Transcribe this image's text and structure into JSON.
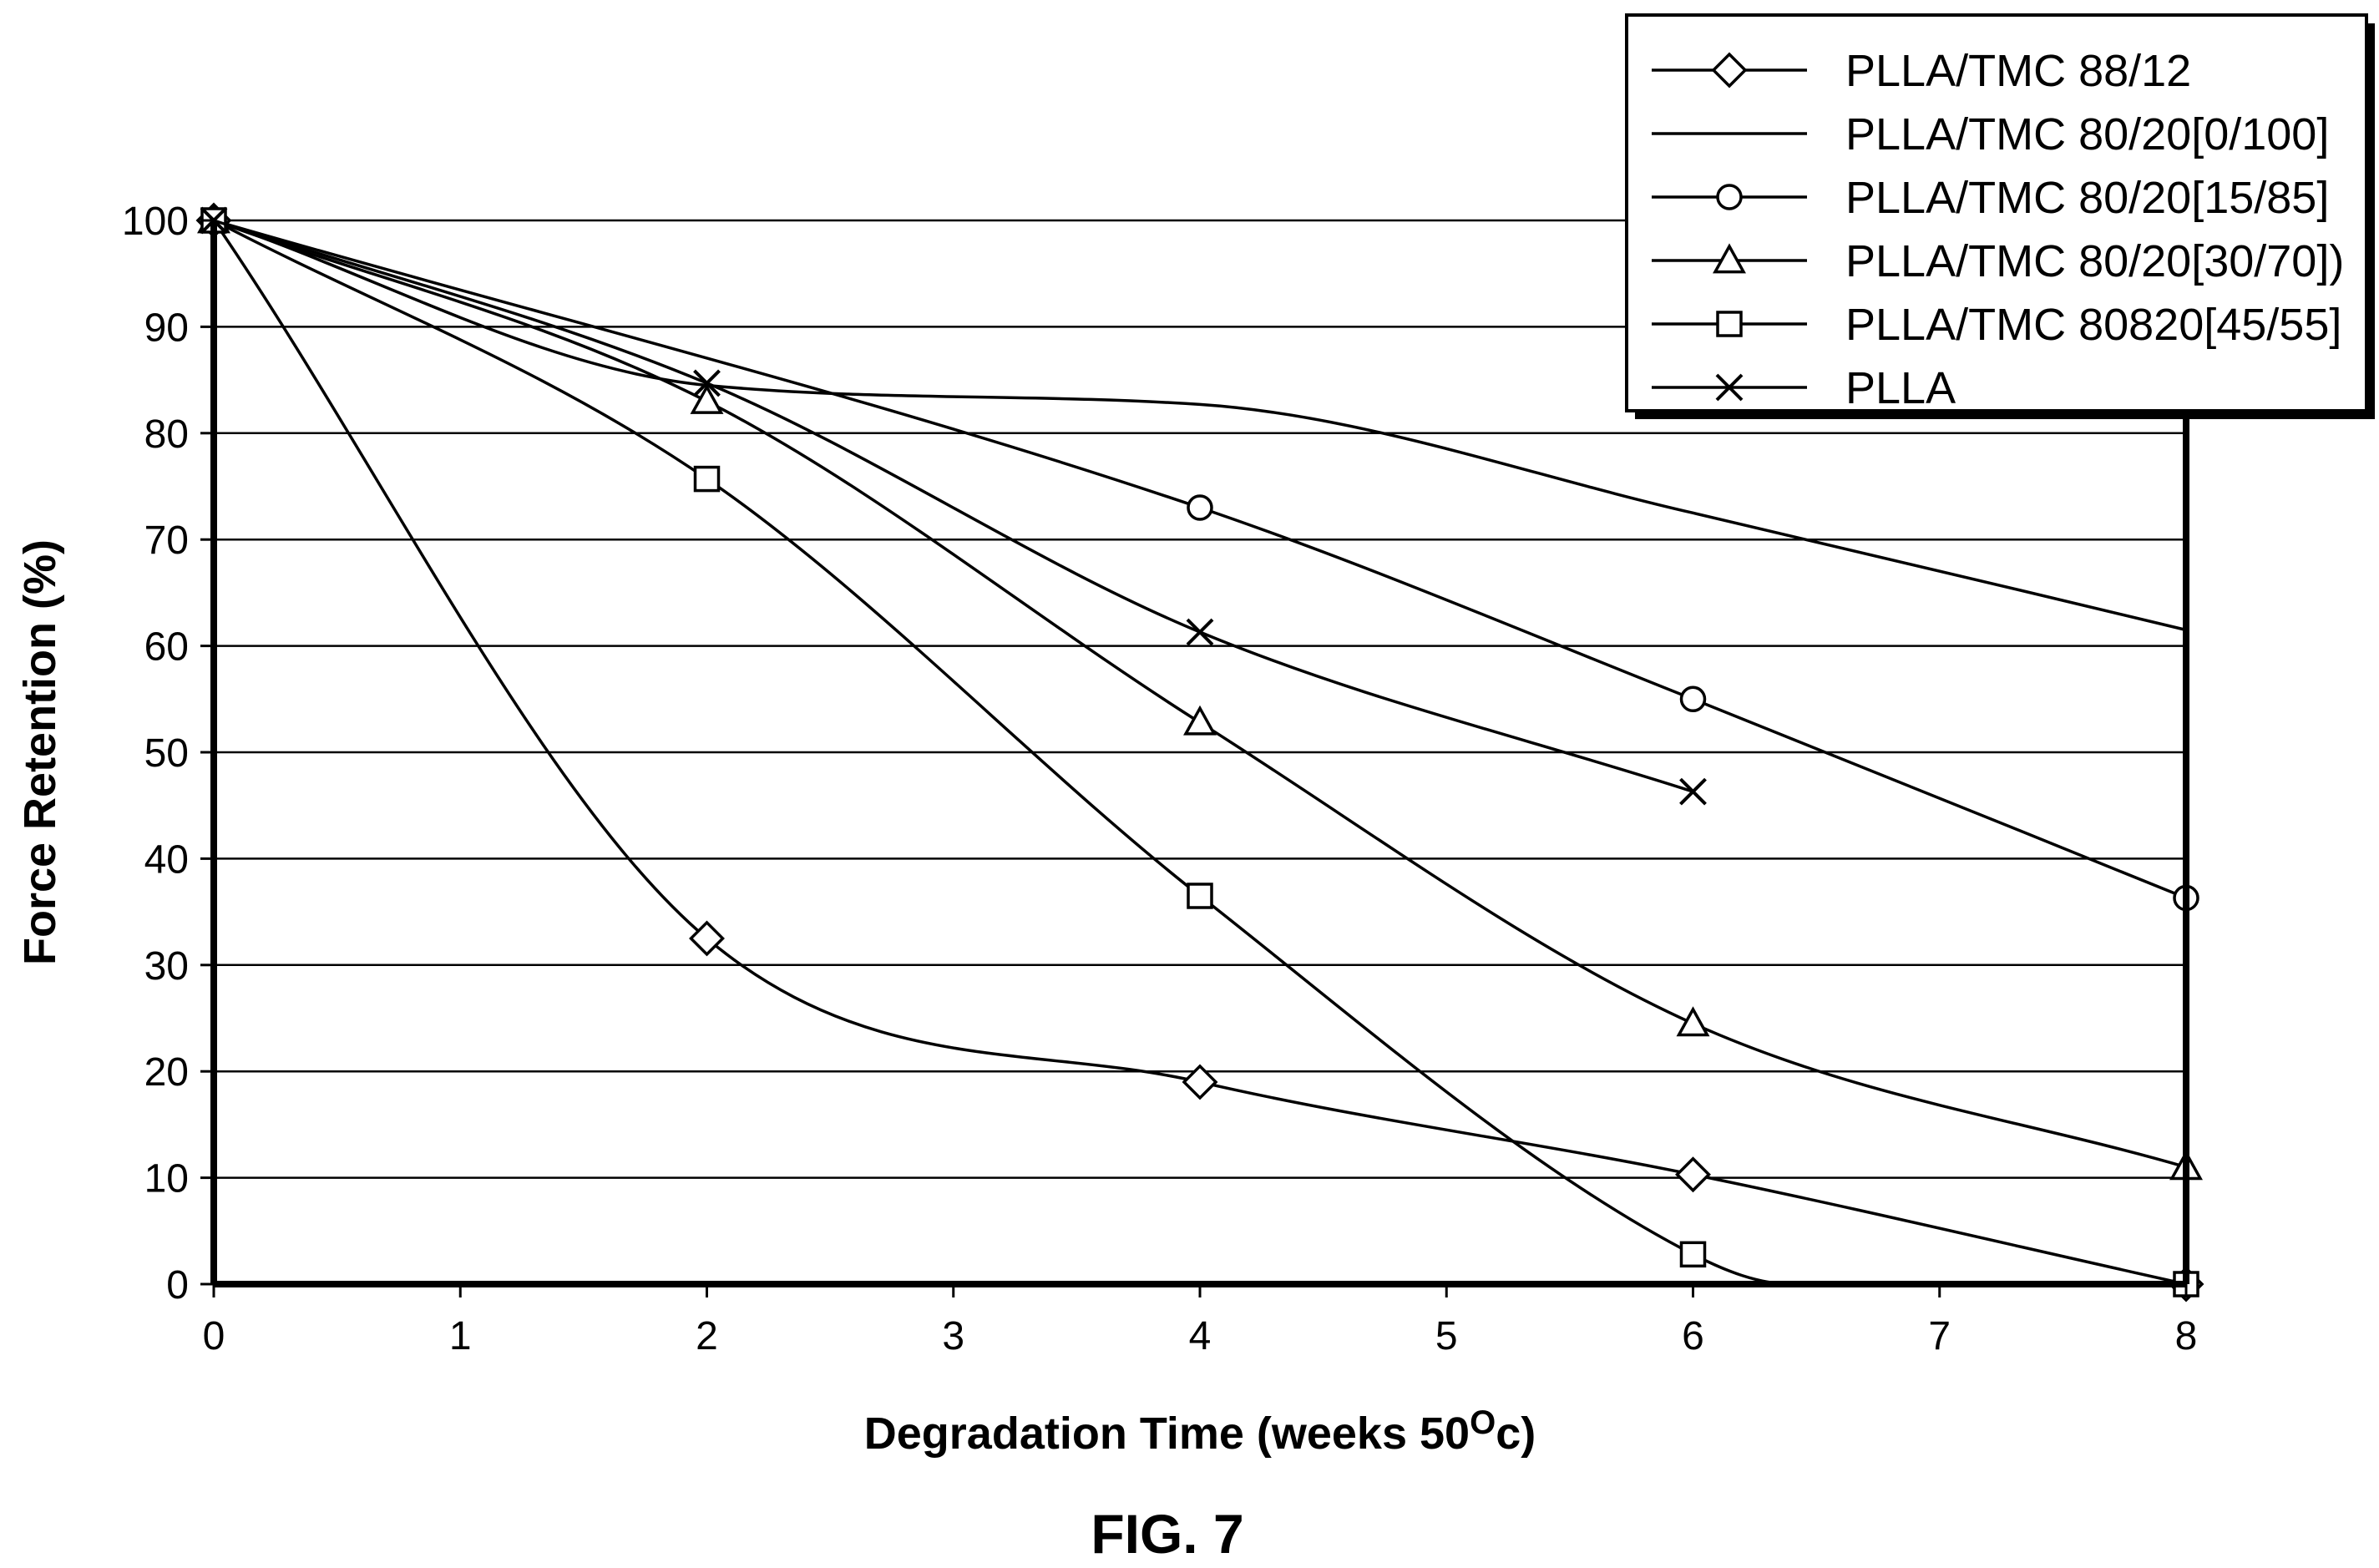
{
  "chart_data": {
    "type": "line",
    "title": "",
    "xlabel": "Degradation Time (weeks 50",
    "xlabel_sup": "O",
    "xlabel_end": "c)",
    "ylabel": "Force Retention (%)",
    "xlim": [
      0,
      8
    ],
    "ylim": [
      0,
      100
    ],
    "x_ticks": [
      "0",
      "1",
      "2",
      "3",
      "4",
      "5",
      "6",
      "7",
      "8"
    ],
    "y_ticks": [
      "0",
      "10",
      "20",
      "30",
      "40",
      "50",
      "60",
      "70",
      "80",
      "90",
      "100"
    ],
    "grid": "horizontal",
    "legend_position": "top-right",
    "figure_label": "FIG. 7",
    "series": [
      {
        "name": "PLLA/TMC 88/12",
        "marker": "diamond",
        "x": [
          0,
          2,
          4,
          6,
          8
        ],
        "y": [
          100,
          32.5,
          19,
          10.3,
          0
        ]
      },
      {
        "name": "PLLA/TMC 80/20[0/100]",
        "marker": "none",
        "x": [
          0,
          2,
          4,
          6,
          8
        ],
        "y": [
          100,
          84.5,
          82.7,
          72.5,
          61.5
        ]
      },
      {
        "name": "PLLA/TMC 80/20[15/85]",
        "marker": "circle",
        "x": [
          0,
          4,
          6,
          8
        ],
        "y": [
          100,
          73,
          55,
          36.3
        ]
      },
      {
        "name": "PLLA/TMC 80/20[30/70])",
        "marker": "triangle",
        "x": [
          0,
          2,
          4,
          6,
          8
        ],
        "y": [
          100,
          83,
          52.8,
          24.5,
          11
        ]
      },
      {
        "name": "PLLA/TMC 80820[45/55]",
        "marker": "square",
        "x": [
          0,
          2,
          4,
          6,
          6.4,
          8
        ],
        "y": [
          100,
          75.7,
          36.5,
          2.8,
          0,
          0
        ],
        "marker_at": [
          0,
          1,
          2,
          3,
          5
        ]
      },
      {
        "name": "PLLA",
        "marker": "x",
        "x": [
          0,
          2,
          4,
          6
        ],
        "y": [
          100,
          84.7,
          61.3,
          46.3
        ]
      }
    ]
  }
}
